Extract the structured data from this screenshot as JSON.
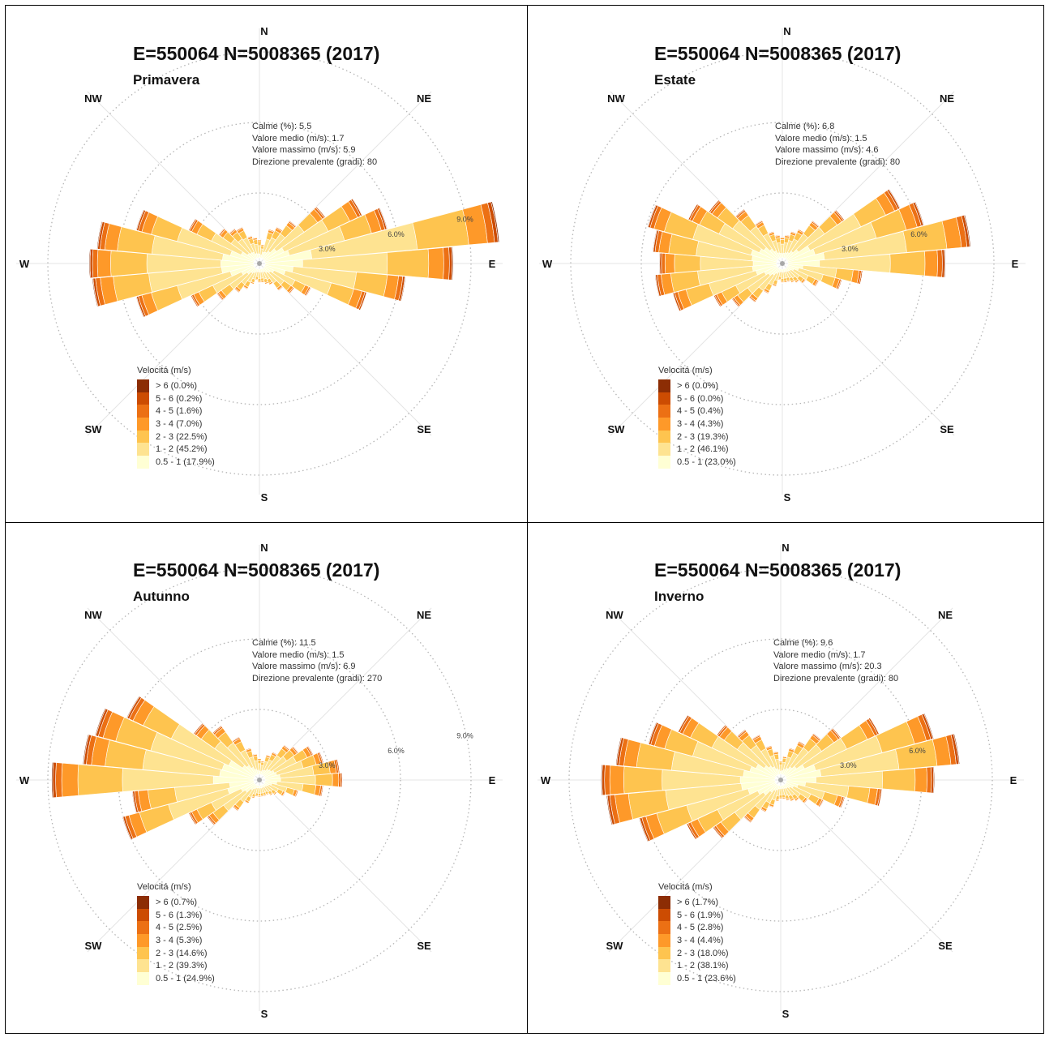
{
  "speed_colors": [
    "#ffffd4",
    "#fee391",
    "#fec44f",
    "#fe9929",
    "#ec7014",
    "#cc4c02",
    "#8c2d04"
  ],
  "chart_data": [
    {
      "type": "windrose",
      "title": "E=550064 N=5008365 (2017)",
      "subtitle": "Primavera",
      "stats": {
        "calme": "Calme (%): 5.5",
        "medio": "Valore medio (m/s): 1.7",
        "massimo": "Valore massimo (m/s): 5.9",
        "direzione": "Direzione prevalente (gradi): 80"
      },
      "compass": {
        "n": "N",
        "ne": "NE",
        "e": "E",
        "se": "SE",
        "s": "S",
        "sw": "SW",
        "w": "W",
        "nw": "NW"
      },
      "ring_labels": [
        "3.0%",
        "6.0%",
        "9.0%"
      ],
      "legend_title": "Velocitá (m/s)",
      "legend": [
        "> 6 (0.0%)",
        "5 - 6 (0.2%)",
        "4 - 5 (1.6%)",
        "3 - 4 (7.0%)",
        "2 - 3 (22.5%)",
        "1 - 2 (45.2%)",
        "0.5 - 1 (17.9%)"
      ],
      "sectors": [
        {
          "dir": 0,
          "total": 0.8
        },
        {
          "dir": 10,
          "total": 0.6
        },
        {
          "dir": 20,
          "total": 1.3
        },
        {
          "dir": 30,
          "total": 1.5
        },
        {
          "dir": 40,
          "total": 2.0
        },
        {
          "dir": 50,
          "total": 3.2
        },
        {
          "dir": 60,
          "total": 4.6
        },
        {
          "dir": 70,
          "total": 5.4
        },
        {
          "dir": 80,
          "total": 10.0
        },
        {
          "dir": 90,
          "total": 8.0
        },
        {
          "dir": 100,
          "total": 6.0
        },
        {
          "dir": 110,
          "total": 4.5
        },
        {
          "dir": 120,
          "total": 2.2
        },
        {
          "dir": 130,
          "total": 1.6
        },
        {
          "dir": 140,
          "total": 1.2
        },
        {
          "dir": 150,
          "total": 0.8
        },
        {
          "dir": 160,
          "total": 0.7
        },
        {
          "dir": 170,
          "total": 0.6
        },
        {
          "dir": 180,
          "total": 0.6
        },
        {
          "dir": 190,
          "total": 0.5
        },
        {
          "dir": 200,
          "total": 0.7
        },
        {
          "dir": 210,
          "total": 1.0
        },
        {
          "dir": 220,
          "total": 1.3
        },
        {
          "dir": 230,
          "total": 2.0
        },
        {
          "dir": 240,
          "total": 3.0
        },
        {
          "dir": 250,
          "total": 5.2
        },
        {
          "dir": 260,
          "total": 6.9
        },
        {
          "dir": 270,
          "total": 7.0
        },
        {
          "dir": 280,
          "total": 6.7
        },
        {
          "dir": 290,
          "total": 5.2
        },
        {
          "dir": 300,
          "total": 3.1
        },
        {
          "dir": 310,
          "total": 1.9
        },
        {
          "dir": 320,
          "total": 1.6
        },
        {
          "dir": 330,
          "total": 1.5
        },
        {
          "dir": 340,
          "total": 1.0
        },
        {
          "dir": 350,
          "total": 0.9
        }
      ]
    },
    {
      "type": "windrose",
      "title": "E=550064 N=5008365 (2017)",
      "subtitle": "Estate",
      "stats": {
        "calme": "Calme (%): 6.8",
        "medio": "Valore medio (m/s): 1.5",
        "massimo": "Valore massimo (m/s): 4.6",
        "direzione": "Direzione prevalente (gradi): 80"
      },
      "compass": {
        "n": "N",
        "ne": "NE",
        "e": "E",
        "se": "SE",
        "s": "S",
        "sw": "SW",
        "w": "W",
        "nw": "NW"
      },
      "ring_labels": [
        "3.0%",
        "6.0%"
      ],
      "legend_title": "Velocitá (m/s)",
      "legend": [
        "> 6 (0.0%)",
        "5 - 6 (0.0%)",
        "4 - 5 (0.4%)",
        "3 - 4 (4.3%)",
        "2 - 3 (19.3%)",
        "1 - 2 (46.1%)",
        "0.5 - 1 (23.0%)"
      ],
      "sectors": [
        {
          "dir": 0,
          "total": 0.9
        },
        {
          "dir": 10,
          "total": 1.0
        },
        {
          "dir": 20,
          "total": 1.2
        },
        {
          "dir": 30,
          "total": 1.4
        },
        {
          "dir": 40,
          "total": 2.0
        },
        {
          "dir": 50,
          "total": 3.0
        },
        {
          "dir": 60,
          "total": 5.3
        },
        {
          "dir": 70,
          "total": 6.0
        },
        {
          "dir": 80,
          "total": 7.8
        },
        {
          "dir": 90,
          "total": 6.7
        },
        {
          "dir": 100,
          "total": 3.2
        },
        {
          "dir": 110,
          "total": 2.4
        },
        {
          "dir": 120,
          "total": 1.5
        },
        {
          "dir": 130,
          "total": 1.0
        },
        {
          "dir": 140,
          "total": 0.8
        },
        {
          "dir": 150,
          "total": 0.7
        },
        {
          "dir": 160,
          "total": 0.6
        },
        {
          "dir": 170,
          "total": 0.6
        },
        {
          "dir": 180,
          "total": 0.6
        },
        {
          "dir": 190,
          "total": 0.5
        },
        {
          "dir": 200,
          "total": 0.8
        },
        {
          "dir": 210,
          "total": 1.2
        },
        {
          "dir": 220,
          "total": 1.8
        },
        {
          "dir": 230,
          "total": 2.4
        },
        {
          "dir": 240,
          "total": 3.0
        },
        {
          "dir": 250,
          "total": 4.6
        },
        {
          "dir": 260,
          "total": 5.2
        },
        {
          "dir": 270,
          "total": 5.0
        },
        {
          "dir": 280,
          "total": 5.3
        },
        {
          "dir": 290,
          "total": 5.7
        },
        {
          "dir": 300,
          "total": 4.2
        },
        {
          "dir": 310,
          "total": 3.6
        },
        {
          "dir": 320,
          "total": 2.6
        },
        {
          "dir": 330,
          "total": 1.8
        },
        {
          "dir": 340,
          "total": 1.2
        },
        {
          "dir": 350,
          "total": 1.0
        }
      ]
    },
    {
      "type": "windrose",
      "title": "E=550064 N=5008365 (2017)",
      "subtitle": "Autunno",
      "stats": {
        "calme": "Calme (%): 11.5",
        "medio": "Valore medio (m/s): 1.5",
        "massimo": "Valore massimo (m/s): 6.9",
        "direzione": "Direzione prevalente (gradi): 270"
      },
      "compass": {
        "n": "N",
        "ne": "NE",
        "e": "E",
        "se": "SE",
        "s": "S",
        "sw": "SW",
        "w": "W",
        "nw": "NW"
      },
      "ring_labels": [
        "3.0%",
        "6.0%",
        "9.0%"
      ],
      "legend_title": "Velocitá (m/s)",
      "legend": [
        "> 6 (0.7%)",
        "5 - 6 (1.3%)",
        "4 - 5 (2.5%)",
        "3 - 4 (5.3%)",
        "2 - 3 (14.6%)",
        "1 - 2 (39.3%)",
        "0.5 - 1 (24.9%)"
      ],
      "sectors": [
        {
          "dir": 0,
          "total": 0.7
        },
        {
          "dir": 10,
          "total": 0.6
        },
        {
          "dir": 20,
          "total": 0.9
        },
        {
          "dir": 30,
          "total": 1.1
        },
        {
          "dir": 40,
          "total": 1.6
        },
        {
          "dir": 50,
          "total": 1.8
        },
        {
          "dir": 60,
          "total": 2.3
        },
        {
          "dir": 70,
          "total": 2.6
        },
        {
          "dir": 80,
          "total": 3.2
        },
        {
          "dir": 90,
          "total": 3.3
        },
        {
          "dir": 100,
          "total": 2.5
        },
        {
          "dir": 110,
          "total": 1.5
        },
        {
          "dir": 120,
          "total": 1.0
        },
        {
          "dir": 130,
          "total": 0.7
        },
        {
          "dir": 140,
          "total": 0.6
        },
        {
          "dir": 150,
          "total": 0.5
        },
        {
          "dir": 160,
          "total": 0.5
        },
        {
          "dir": 170,
          "total": 0.5
        },
        {
          "dir": 180,
          "total": 0.5
        },
        {
          "dir": 190,
          "total": 0.5
        },
        {
          "dir": 200,
          "total": 0.6
        },
        {
          "dir": 210,
          "total": 0.9
        },
        {
          "dir": 220,
          "total": 1.4
        },
        {
          "dir": 230,
          "total": 2.5
        },
        {
          "dir": 240,
          "total": 3.1
        },
        {
          "dir": 250,
          "total": 5.8
        },
        {
          "dir": 260,
          "total": 5.2
        },
        {
          "dir": 270,
          "total": 8.6
        },
        {
          "dir": 280,
          "total": 7.3
        },
        {
          "dir": 290,
          "total": 7.0
        },
        {
          "dir": 300,
          "total": 6.0
        },
        {
          "dir": 310,
          "total": 3.2
        },
        {
          "dir": 320,
          "total": 2.6
        },
        {
          "dir": 330,
          "total": 1.8
        },
        {
          "dir": 340,
          "total": 1.2
        },
        {
          "dir": 350,
          "total": 0.9
        }
      ]
    },
    {
      "type": "windrose",
      "title": "E=550064 N=5008365 (2017)",
      "subtitle": "Inverno",
      "stats": {
        "calme": "Calme (%): 9.6",
        "medio": "Valore medio (m/s): 1.7",
        "massimo": "Valore massimo (m/s): 20.3",
        "direzione": "Direzione prevalente (gradi): 80"
      },
      "compass": {
        "n": "N",
        "ne": "NE",
        "e": "E",
        "se": "SE",
        "s": "S",
        "sw": "SW",
        "w": "W",
        "nw": "NW"
      },
      "ring_labels": [
        "3.0%",
        "6.0%"
      ],
      "legend_title": "Velocitá (m/s)",
      "legend": [
        "> 6 (1.7%)",
        "5 - 6 (1.9%)",
        "4 - 5 (2.8%)",
        "3 - 4 (4.4%)",
        "2 - 3 (18.0%)",
        "1 - 2 (38.1%)",
        "0.5 - 1 (23.6%)"
      ],
      "sectors": [
        {
          "dir": 0,
          "total": 0.6
        },
        {
          "dir": 10,
          "total": 0.8
        },
        {
          "dir": 20,
          "total": 1.2
        },
        {
          "dir": 30,
          "total": 1.6
        },
        {
          "dir": 40,
          "total": 2.2
        },
        {
          "dir": 50,
          "total": 2.9
        },
        {
          "dir": 60,
          "total": 4.4
        },
        {
          "dir": 70,
          "total": 6.5
        },
        {
          "dir": 80,
          "total": 7.4
        },
        {
          "dir": 90,
          "total": 6.3
        },
        {
          "dir": 100,
          "total": 4.1
        },
        {
          "dir": 110,
          "total": 2.6
        },
        {
          "dir": 120,
          "total": 1.8
        },
        {
          "dir": 130,
          "total": 1.2
        },
        {
          "dir": 140,
          "total": 0.9
        },
        {
          "dir": 150,
          "total": 0.8
        },
        {
          "dir": 160,
          "total": 0.7
        },
        {
          "dir": 170,
          "total": 0.6
        },
        {
          "dir": 180,
          "total": 0.6
        },
        {
          "dir": 190,
          "total": 0.7
        },
        {
          "dir": 200,
          "total": 1.0
        },
        {
          "dir": 210,
          "total": 1.3
        },
        {
          "dir": 220,
          "total": 2.0
        },
        {
          "dir": 230,
          "total": 3.3
        },
        {
          "dir": 240,
          "total": 4.2
        },
        {
          "dir": 250,
          "total": 6.0
        },
        {
          "dir": 260,
          "total": 7.2
        },
        {
          "dir": 270,
          "total": 7.4
        },
        {
          "dir": 280,
          "total": 6.8
        },
        {
          "dir": 290,
          "total": 5.6
        },
        {
          "dir": 300,
          "total": 4.6
        },
        {
          "dir": 310,
          "total": 3.1
        },
        {
          "dir": 320,
          "total": 2.4
        },
        {
          "dir": 330,
          "total": 1.9
        },
        {
          "dir": 340,
          "total": 1.3
        },
        {
          "dir": 350,
          "total": 1.0
        }
      ]
    }
  ]
}
